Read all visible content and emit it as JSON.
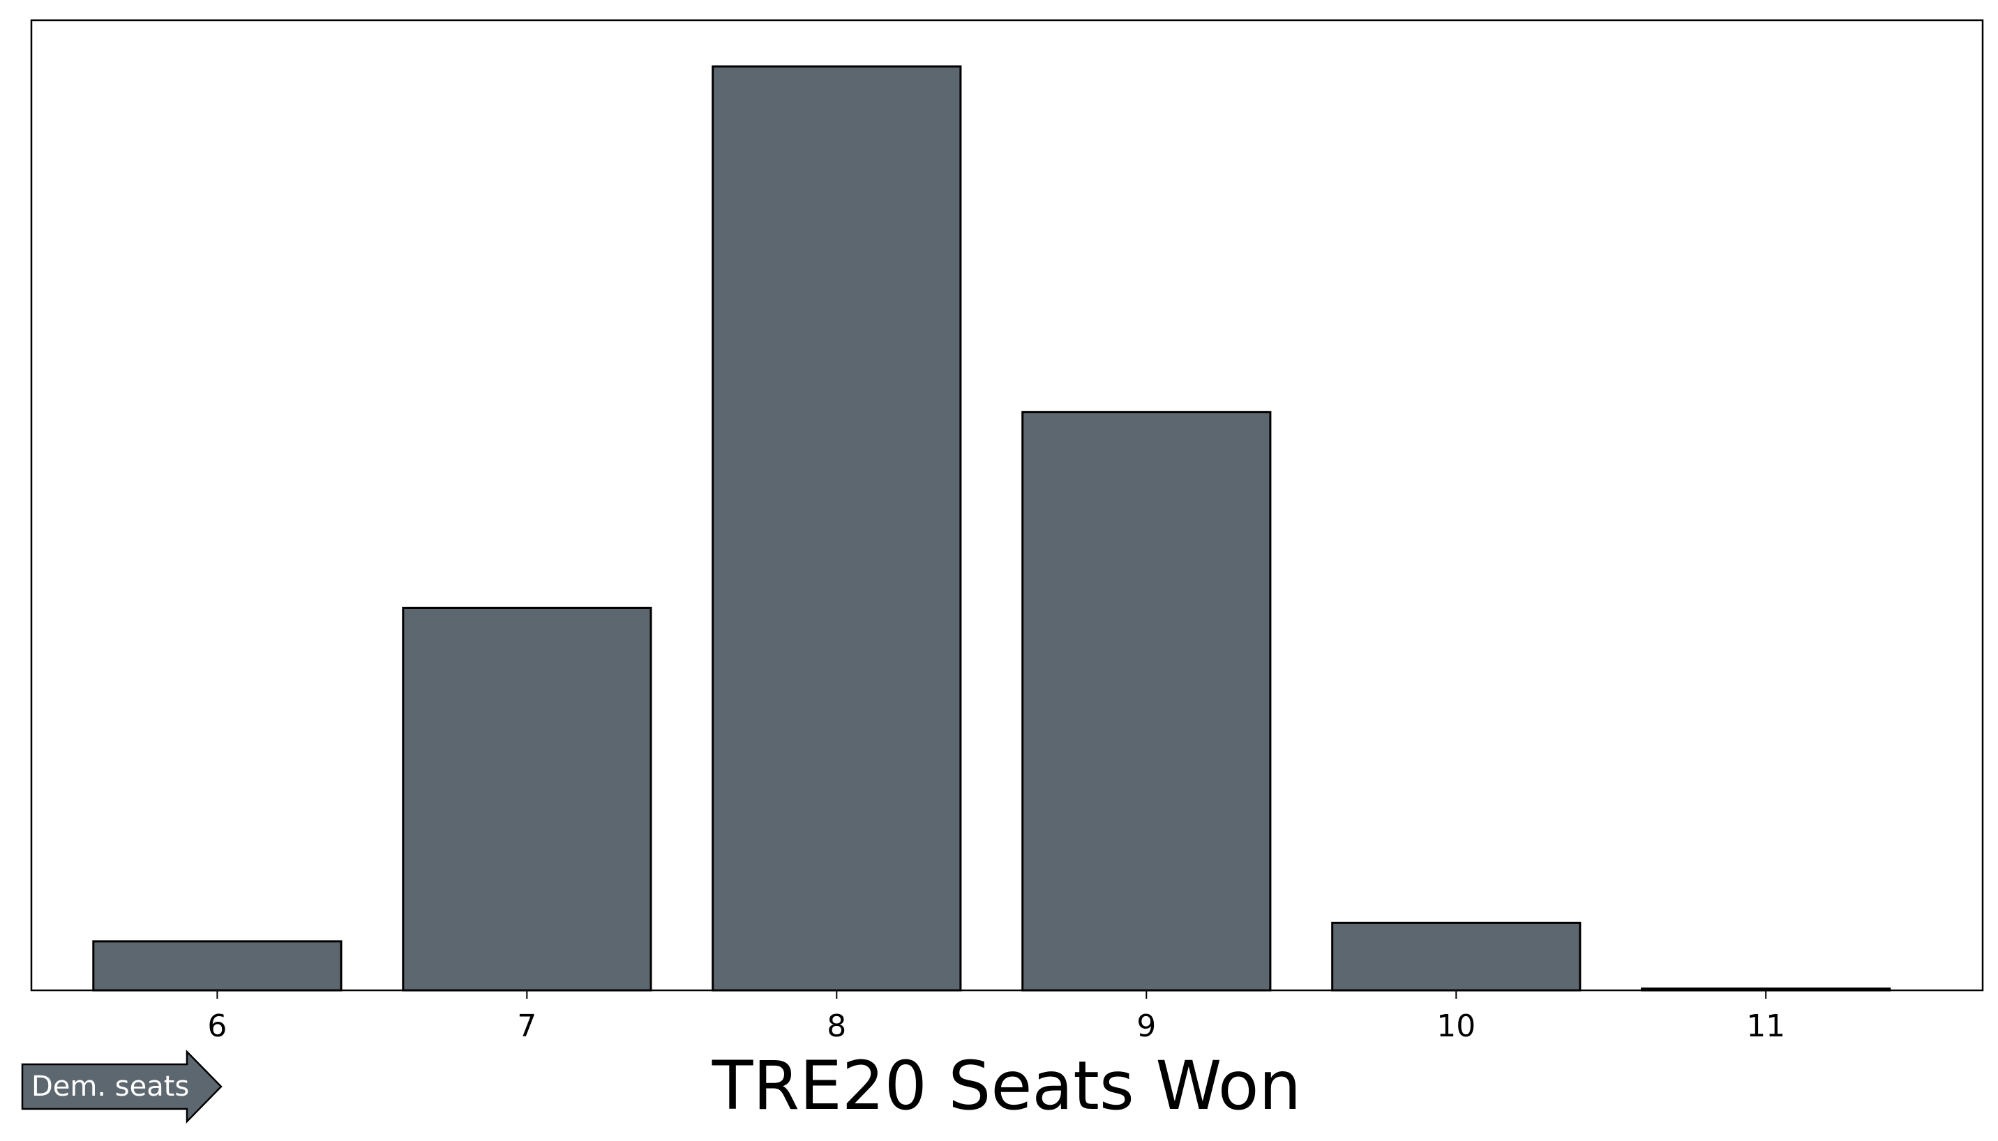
{
  "chart_data": {
    "type": "bar",
    "title": "",
    "xlabel": "TRE20 Seats Won",
    "ylabel": "",
    "categories": [
      "6",
      "7",
      "8",
      "9",
      "10",
      "11"
    ],
    "values": [
      5.3,
      41.4,
      100,
      62.6,
      7.3,
      0.2
    ],
    "ylim": [
      0,
      105
    ],
    "grid": false,
    "legend": "none",
    "bar_color": "#5d6770",
    "edge_color": "#000000",
    "annotation": {
      "text": "Dem. seats",
      "icon": "right-arrow-icon",
      "fill": "#5d6770",
      "text_color": "#ffffff"
    }
  }
}
